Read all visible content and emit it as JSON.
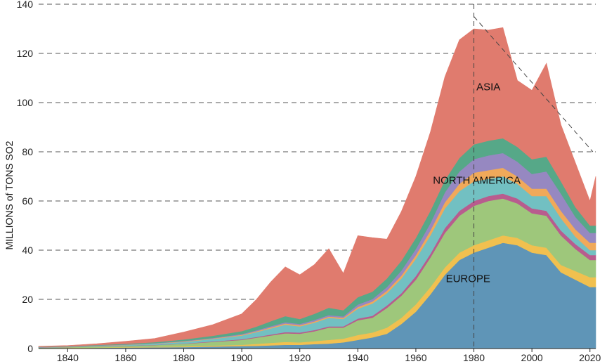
{
  "chart_data": {
    "type": "area",
    "stacked": true,
    "title": "",
    "xlabel": "",
    "ylabel": "MILLIONS of TONS SO2",
    "xlim": [
      1830,
      2022
    ],
    "ylim": [
      0,
      140
    ],
    "grid": "horizontal dashed",
    "x_ticks": [
      1840,
      1860,
      1880,
      1900,
      1920,
      1940,
      1960,
      1980,
      2000,
      2020
    ],
    "y_ticks": [
      0,
      20,
      40,
      60,
      80,
      100,
      120,
      140
    ],
    "x": [
      1830,
      1840,
      1850,
      1860,
      1870,
      1880,
      1890,
      1900,
      1905,
      1910,
      1915,
      1920,
      1925,
      1930,
      1935,
      1940,
      1945,
      1950,
      1955,
      1960,
      1965,
      1970,
      1975,
      1980,
      1985,
      1990,
      1995,
      2000,
      2005,
      2010,
      2015,
      2020,
      2022
    ],
    "series": [
      {
        "name": "EUROPE",
        "color": "#5f95b7",
        "values": [
          0.1,
          0.2,
          0.3,
          0.4,
          0.5,
          0.6,
          0.8,
          1.0,
          1.1,
          1.3,
          1.5,
          1.5,
          1.8,
          2.0,
          2.5,
          3.5,
          4.5,
          6.0,
          10,
          15,
          22,
          30,
          36,
          39,
          41,
          43,
          42,
          39,
          38,
          31,
          28,
          25,
          25
        ]
      },
      {
        "name": "",
        "color": "#f1c04f",
        "values": [
          0.05,
          0.1,
          0.1,
          0.15,
          0.2,
          0.3,
          0.4,
          0.5,
          0.8,
          1.0,
          1.2,
          1.0,
          1.2,
          1.5,
          1.5,
          2.0,
          2.0,
          2.5,
          2.5,
          3.0,
          3.0,
          3.0,
          3.0,
          3.0,
          3.0,
          3.0,
          3.0,
          3.0,
          3.0,
          3.0,
          3.5,
          4.0,
          4.0
        ]
      },
      {
        "name": "",
        "color": "#9ec77b",
        "values": [
          0.2,
          0.3,
          0.4,
          0.5,
          0.7,
          1.0,
          1.5,
          2.0,
          2.5,
          3.0,
          3.5,
          3.5,
          4.0,
          5.0,
          4.5,
          6.0,
          6.0,
          8.0,
          9.0,
          10,
          12,
          14,
          15,
          16,
          16,
          15,
          14,
          13,
          13,
          12,
          9,
          7,
          7
        ]
      },
      {
        "name": "",
        "color": "#b85c8e",
        "values": [
          0.05,
          0.05,
          0.05,
          0.1,
          0.1,
          0.1,
          0.2,
          0.3,
          0.3,
          0.4,
          0.5,
          0.5,
          0.5,
          0.5,
          0.5,
          0.7,
          0.8,
          1.0,
          1.0,
          1.5,
          1.5,
          2.0,
          2.0,
          2.0,
          2.0,
          2.0,
          2.0,
          2.0,
          2.0,
          2.0,
          2.0,
          2.0,
          2.0
        ]
      },
      {
        "name": "NORTH AMERICA",
        "color": "#72c0c2",
        "values": [
          0.1,
          0.1,
          0.2,
          0.3,
          0.5,
          0.7,
          1.0,
          1.5,
          2.0,
          2.5,
          3.0,
          2.5,
          3.0,
          3.5,
          3.0,
          4.0,
          5.0,
          5.0,
          6.0,
          7.0,
          7.5,
          8.0,
          8.0,
          8.0,
          7.0,
          7.0,
          6.0,
          5.0,
          6.0,
          5.0,
          3.0,
          2.0,
          2.0
        ]
      },
      {
        "name": "",
        "color": "#f0a95a",
        "values": [
          0.05,
          0.05,
          0.1,
          0.1,
          0.1,
          0.2,
          0.2,
          0.3,
          0.3,
          0.4,
          0.5,
          0.5,
          0.5,
          0.5,
          0.5,
          0.7,
          0.8,
          1.0,
          1.2,
          1.5,
          2.0,
          2.5,
          3.0,
          3.5,
          3.5,
          3.5,
          3.0,
          3.0,
          3.0,
          3.0,
          3.0,
          3.0,
          3.0
        ]
      },
      {
        "name": "",
        "color": "#9688c1",
        "values": [
          0.05,
          0.05,
          0.1,
          0.1,
          0.1,
          0.2,
          0.2,
          0.3,
          0.4,
          0.5,
          0.5,
          0.5,
          0.6,
          0.6,
          0.6,
          1.0,
          1.0,
          1.5,
          2.0,
          2.5,
          3.0,
          4.0,
          5.0,
          5.5,
          6.0,
          6.0,
          6.0,
          6.0,
          7.0,
          7.0,
          5.0,
          4.0,
          4.0
        ]
      },
      {
        "name": "",
        "color": "#56a888",
        "values": [
          0.1,
          0.1,
          0.2,
          0.3,
          0.4,
          0.6,
          0.9,
          1.2,
          1.5,
          2.0,
          2.5,
          2.0,
          2.5,
          3.0,
          2.5,
          3.0,
          3.0,
          3.5,
          4.0,
          4.5,
          5.0,
          5.0,
          5.5,
          6.0,
          6.0,
          6.0,
          6.0,
          6.0,
          6.0,
          5.0,
          4.0,
          3.0,
          3.0
        ]
      },
      {
        "name": "ASIA",
        "color": "#e07b6e",
        "values": [
          0.2,
          0.3,
          0.5,
          1.0,
          1.5,
          3.0,
          4.5,
          7.0,
          11,
          16,
          20,
          18,
          20,
          24,
          15,
          25,
          22,
          16,
          20,
          25,
          32,
          42,
          48,
          47,
          45,
          45,
          27,
          28,
          38,
          23,
          18,
          10,
          20
        ]
      }
    ],
    "annotations": [
      {
        "type": "vertical_dashed_line",
        "x": 1980
      },
      {
        "type": "dashed_line",
        "from": [
          1980,
          135
        ],
        "to": [
          2021,
          80
        ]
      }
    ]
  }
}
